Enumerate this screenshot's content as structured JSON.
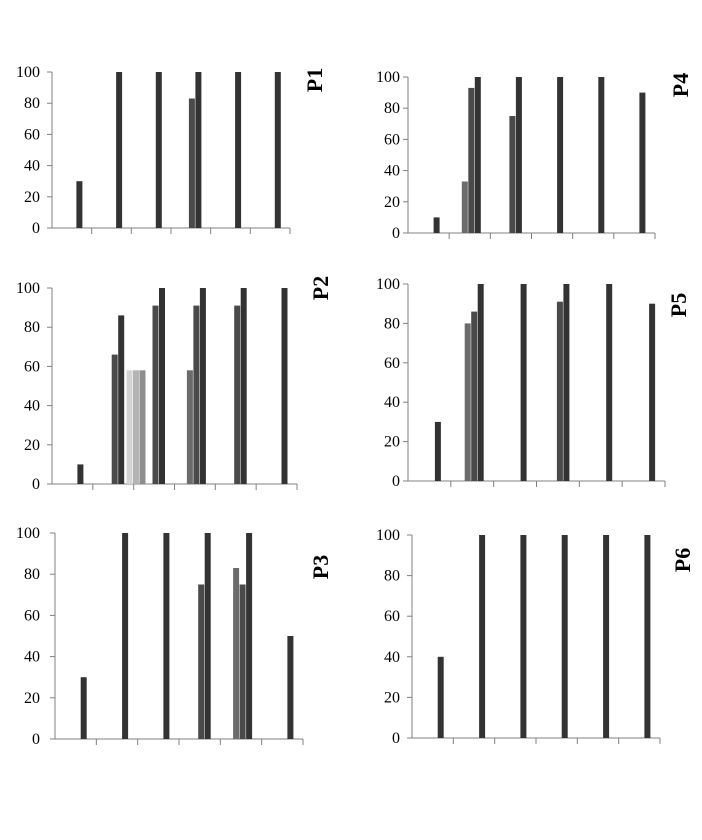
{
  "colors": {
    "background": "#ffffff",
    "axis": "#808080",
    "text": "#000000",
    "series": [
      "#d4d4d4",
      "#b4b4b4",
      "#8e8e8e",
      "#6b6b6b",
      "#4a4a4a",
      "#333333"
    ]
  },
  "chart_data": [
    {
      "type": "bar",
      "title": "P1",
      "ylim": [
        0,
        100
      ],
      "yticks": [
        "0",
        "20",
        "40",
        "60",
        "80",
        "100"
      ],
      "grid": false,
      "legend": "none",
      "groups": 6,
      "bars": [
        {
          "group": 0,
          "series": 5,
          "value": 30
        },
        {
          "group": 1,
          "series": 5,
          "value": 100
        },
        {
          "group": 2,
          "series": 5,
          "value": 100
        },
        {
          "group": 3,
          "series": 4,
          "value": 83
        },
        {
          "group": 3,
          "series": 5,
          "value": 100
        },
        {
          "group": 4,
          "series": 5,
          "value": 100
        },
        {
          "group": 5,
          "series": 5,
          "value": 100
        }
      ]
    },
    {
      "type": "bar",
      "title": "P4",
      "ylim": [
        0,
        100
      ],
      "yticks": [
        "0",
        "20",
        "40",
        "60",
        "80",
        "100"
      ],
      "grid": false,
      "legend": "none",
      "groups": 6,
      "bars": [
        {
          "group": 0,
          "series": 5,
          "value": 10
        },
        {
          "group": 1,
          "series": 3,
          "value": 33
        },
        {
          "group": 1,
          "series": 4,
          "value": 93
        },
        {
          "group": 1,
          "series": 5,
          "value": 100
        },
        {
          "group": 2,
          "series": 4,
          "value": 75
        },
        {
          "group": 2,
          "series": 5,
          "value": 100
        },
        {
          "group": 3,
          "series": 5,
          "value": 100
        },
        {
          "group": 4,
          "series": 5,
          "value": 100
        },
        {
          "group": 5,
          "series": 5,
          "value": 90
        }
      ]
    },
    {
      "type": "bar",
      "title": "P2",
      "ylim": [
        0,
        100
      ],
      "yticks": [
        "0",
        "20",
        "40",
        "60",
        "80",
        "100"
      ],
      "grid": false,
      "legend": "none",
      "groups": 6,
      "bars": [
        {
          "group": 0,
          "series": 5,
          "value": 10
        },
        {
          "group": 1,
          "series": 4,
          "value": 66
        },
        {
          "group": 1,
          "series": 5,
          "value": 86
        },
        {
          "group": 2,
          "series": 0,
          "value": 58
        },
        {
          "group": 2,
          "series": 1,
          "value": 58
        },
        {
          "group": 2,
          "series": 2,
          "value": 58
        },
        {
          "group": 2,
          "series": 4,
          "value": 91
        },
        {
          "group": 2,
          "series": 5,
          "value": 100
        },
        {
          "group": 3,
          "series": 3,
          "value": 58
        },
        {
          "group": 3,
          "series": 4,
          "value": 91
        },
        {
          "group": 3,
          "series": 5,
          "value": 100
        },
        {
          "group": 4,
          "series": 4,
          "value": 91
        },
        {
          "group": 4,
          "series": 5,
          "value": 100
        },
        {
          "group": 5,
          "series": 5,
          "value": 100
        }
      ]
    },
    {
      "type": "bar",
      "title": "P5",
      "ylim": [
        0,
        100
      ],
      "yticks": [
        "0",
        "20",
        "40",
        "60",
        "80",
        "100"
      ],
      "grid": false,
      "legend": "none",
      "groups": 6,
      "bars": [
        {
          "group": 0,
          "series": 5,
          "value": 30
        },
        {
          "group": 1,
          "series": 3,
          "value": 80
        },
        {
          "group": 1,
          "series": 4,
          "value": 86
        },
        {
          "group": 1,
          "series": 5,
          "value": 100
        },
        {
          "group": 2,
          "series": 5,
          "value": 100
        },
        {
          "group": 3,
          "series": 4,
          "value": 91
        },
        {
          "group": 3,
          "series": 5,
          "value": 100
        },
        {
          "group": 4,
          "series": 5,
          "value": 100
        },
        {
          "group": 5,
          "series": 5,
          "value": 90
        }
      ]
    },
    {
      "type": "bar",
      "title": "P3",
      "ylim": [
        0,
        100
      ],
      "yticks": [
        "0",
        "20",
        "40",
        "60",
        "80",
        "100"
      ],
      "grid": false,
      "legend": "none",
      "groups": 6,
      "bars": [
        {
          "group": 0,
          "series": 5,
          "value": 30
        },
        {
          "group": 1,
          "series": 5,
          "value": 100
        },
        {
          "group": 2,
          "series": 5,
          "value": 100
        },
        {
          "group": 3,
          "series": 4,
          "value": 75
        },
        {
          "group": 3,
          "series": 5,
          "value": 100
        },
        {
          "group": 4,
          "series": 3,
          "value": 83
        },
        {
          "group": 4,
          "series": 4,
          "value": 75
        },
        {
          "group": 4,
          "series": 5,
          "value": 100
        },
        {
          "group": 5,
          "series": 5,
          "value": 50
        }
      ]
    },
    {
      "type": "bar",
      "title": "P6",
      "ylim": [
        0,
        100
      ],
      "yticks": [
        "0",
        "20",
        "40",
        "60",
        "80",
        "100"
      ],
      "grid": false,
      "legend": "none",
      "groups": 6,
      "bars": [
        {
          "group": 0,
          "series": 5,
          "value": 40
        },
        {
          "group": 1,
          "series": 5,
          "value": 100
        },
        {
          "group": 2,
          "series": 5,
          "value": 100
        },
        {
          "group": 3,
          "series": 5,
          "value": 100
        },
        {
          "group": 4,
          "series": 5,
          "value": 100
        },
        {
          "group": 5,
          "series": 5,
          "value": 100
        }
      ]
    }
  ]
}
